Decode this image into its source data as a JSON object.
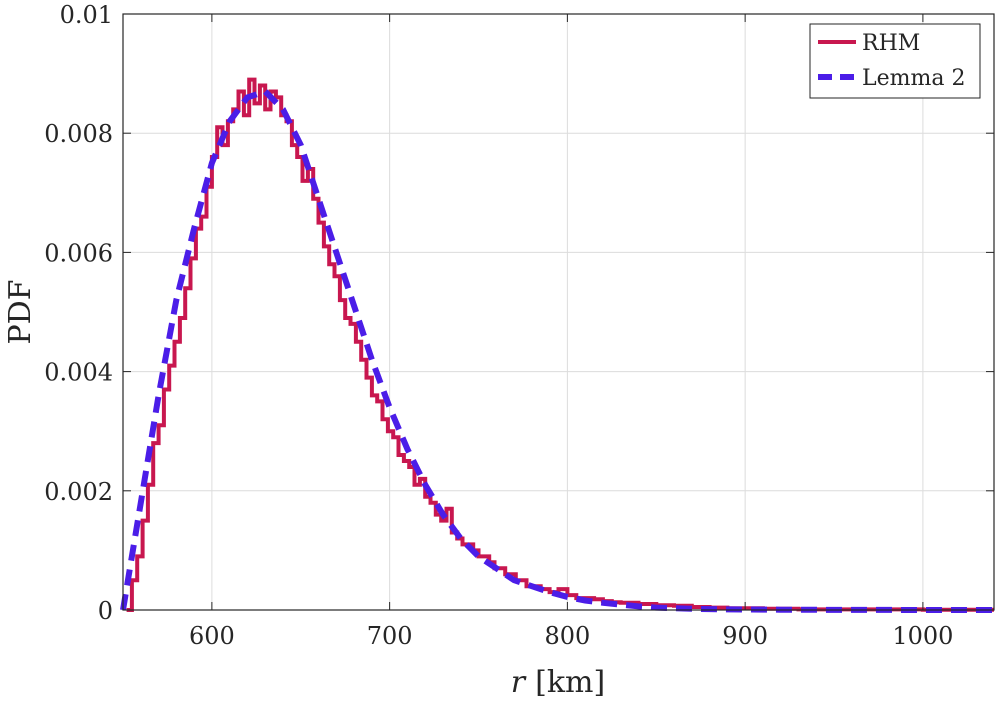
{
  "chart_data": {
    "type": "line",
    "xlabel_var": "r",
    "xlabel_unit": "[km]",
    "ylabel": "PDF",
    "xlim": [
      550,
      1040
    ],
    "ylim": [
      0,
      0.01
    ],
    "xticks": [
      600,
      700,
      800,
      900,
      1000
    ],
    "xtick_labels": [
      "600",
      "700",
      "800",
      "900",
      "1000"
    ],
    "yticks": [
      0,
      0.002,
      0.004,
      0.006,
      0.008,
      0.01
    ],
    "ytick_labels": [
      "0",
      "0.002",
      "0.004",
      "0.006",
      "0.008",
      "0.01"
    ],
    "grid": true,
    "legend_position": "top-right",
    "series": [
      {
        "name": "RHM",
        "style": "solid-stairs",
        "color": "#c8174f",
        "x": [
          552,
          555,
          558,
          561,
          564,
          567,
          570,
          573,
          576,
          579,
          582,
          585,
          588,
          591,
          594,
          597,
          600,
          603,
          606,
          609,
          612,
          615,
          618,
          621,
          624,
          627,
          630,
          633,
          636,
          639,
          642,
          645,
          648,
          651,
          654,
          657,
          660,
          663,
          666,
          669,
          672,
          675,
          678,
          681,
          684,
          687,
          690,
          693,
          696,
          699,
          702,
          705,
          708,
          711,
          714,
          717,
          720,
          723,
          726,
          729,
          732,
          735,
          738,
          741,
          744,
          747,
          750,
          753,
          756,
          759,
          762,
          765,
          768,
          771,
          774,
          777,
          780,
          785,
          790,
          795,
          800,
          805,
          810,
          815,
          820,
          825,
          830,
          840,
          850,
          860,
          870,
          880,
          890,
          900,
          910,
          920,
          930,
          940,
          950,
          960,
          970,
          980,
          990,
          1000,
          1010,
          1020,
          1030,
          1040
        ],
        "y": [
          0,
          0.0005,
          0.0009,
          0.0015,
          0.0021,
          0.0028,
          0.0031,
          0.0037,
          0.0041,
          0.0045,
          0.0049,
          0.0054,
          0.0059,
          0.0064,
          0.0066,
          0.0071,
          0.0076,
          0.0081,
          0.0078,
          0.0082,
          0.0084,
          0.0087,
          0.0083,
          0.0089,
          0.0085,
          0.0088,
          0.0084,
          0.0087,
          0.0086,
          0.0083,
          0.0082,
          0.0078,
          0.0076,
          0.0072,
          0.0074,
          0.0069,
          0.0065,
          0.0061,
          0.0058,
          0.0056,
          0.0052,
          0.0049,
          0.0048,
          0.0045,
          0.0042,
          0.0039,
          0.0036,
          0.0035,
          0.0032,
          0.003,
          0.0029,
          0.0026,
          0.0025,
          0.0024,
          0.0021,
          0.0022,
          0.0019,
          0.0018,
          0.0016,
          0.0015,
          0.0017,
          0.0013,
          0.0012,
          0.0011,
          0.0011,
          0.001,
          0.0009,
          0.0009,
          0.0008,
          0.0007,
          0.0007,
          0.0006,
          0.0006,
          0.0005,
          0.0005,
          0.0004,
          0.0004,
          0.00035,
          0.0003,
          0.00035,
          0.00025,
          0.0002,
          0.0002,
          0.00018,
          0.00015,
          0.00013,
          0.00012,
          0.0001,
          8e-05,
          7e-05,
          5e-05,
          4e-05,
          3e-05,
          3e-05,
          2e-05,
          2e-05,
          1e-05,
          1e-05,
          1e-05,
          1e-05,
          1e-05,
          1e-05,
          1e-05,
          5e-06,
          5e-06,
          5e-06,
          5e-06,
          5e-06
        ]
      },
      {
        "name": "Lemma 2",
        "style": "dashed",
        "color": "#4b1de8",
        "x": [
          550,
          560,
          570,
          580,
          590,
          600,
          610,
          620,
          630,
          640,
          650,
          660,
          670,
          680,
          690,
          700,
          710,
          720,
          730,
          740,
          750,
          760,
          770,
          780,
          790,
          800,
          810,
          820,
          830,
          840,
          850,
          860,
          870,
          880,
          890,
          900,
          920,
          940,
          960,
          980,
          1000,
          1020,
          1040
        ],
        "y": [
          0,
          0.0018,
          0.0036,
          0.0052,
          0.0064,
          0.0075,
          0.0082,
          0.0086,
          0.0087,
          0.0084,
          0.0078,
          0.0069,
          0.006,
          0.0051,
          0.0042,
          0.0034,
          0.0027,
          0.0021,
          0.0016,
          0.0012,
          0.0009,
          0.0007,
          0.0005,
          0.0004,
          0.0003,
          0.00022,
          0.00016,
          0.00012,
          9e-05,
          6e-05,
          4e-05,
          3e-05,
          2e-05,
          1.5e-05,
          1e-05,
          8e-06,
          5e-06,
          3e-06,
          2e-06,
          1e-06,
          5e-07,
          3e-07,
          2e-07
        ]
      }
    ]
  }
}
